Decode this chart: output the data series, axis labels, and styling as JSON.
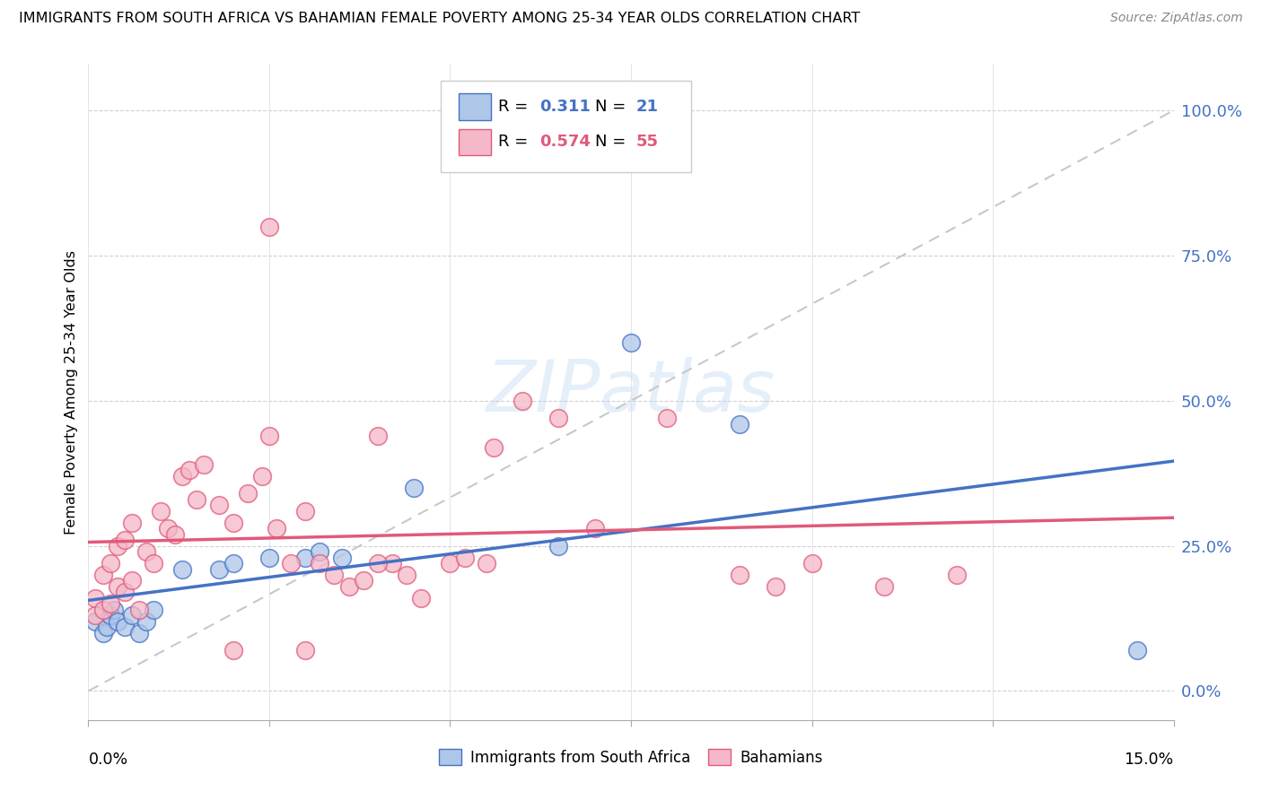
{
  "title": "IMMIGRANTS FROM SOUTH AFRICA VS BAHAMIAN FEMALE POVERTY AMONG 25-34 YEAR OLDS CORRELATION CHART",
  "source": "Source: ZipAtlas.com",
  "ylabel": "Female Poverty Among 25-34 Year Olds",
  "yaxis_labels": [
    "100.0%",
    "75.0%",
    "50.0%",
    "25.0%",
    "0.0%"
  ],
  "yaxis_values": [
    1.0,
    0.75,
    0.5,
    0.25,
    0.0
  ],
  "xlim": [
    0.0,
    0.15
  ],
  "ylim": [
    -0.05,
    1.08
  ],
  "color_blue": "#aec6e8",
  "color_pink": "#f4b8c8",
  "line_blue": "#4472c4",
  "line_pink": "#e05a7a",
  "trendline_dashed": "#c8c8c8",
  "blue_scatter_x": [
    0.001,
    0.002,
    0.0025,
    0.003,
    0.0035,
    0.004,
    0.005,
    0.006,
    0.007,
    0.008,
    0.009,
    0.013,
    0.018,
    0.02,
    0.025,
    0.03,
    0.032,
    0.035,
    0.045,
    0.065,
    0.075,
    0.09,
    0.145
  ],
  "blue_scatter_y": [
    0.12,
    0.1,
    0.11,
    0.13,
    0.14,
    0.12,
    0.11,
    0.13,
    0.1,
    0.12,
    0.14,
    0.21,
    0.21,
    0.22,
    0.23,
    0.23,
    0.24,
    0.23,
    0.35,
    0.25,
    0.6,
    0.46,
    0.07
  ],
  "pink_scatter_x": [
    0.001,
    0.001,
    0.002,
    0.002,
    0.003,
    0.003,
    0.004,
    0.004,
    0.005,
    0.005,
    0.006,
    0.006,
    0.007,
    0.008,
    0.009,
    0.01,
    0.011,
    0.012,
    0.013,
    0.014,
    0.015,
    0.016,
    0.018,
    0.02,
    0.022,
    0.024,
    0.025,
    0.026,
    0.028,
    0.03,
    0.032,
    0.034,
    0.036,
    0.038,
    0.04,
    0.042,
    0.044,
    0.046,
    0.05,
    0.052,
    0.056,
    0.06,
    0.065,
    0.07,
    0.08,
    0.09,
    0.095,
    0.1,
    0.11,
    0.12,
    0.025,
    0.04,
    0.055,
    0.03,
    0.02
  ],
  "pink_scatter_y": [
    0.13,
    0.16,
    0.14,
    0.2,
    0.15,
    0.22,
    0.18,
    0.25,
    0.17,
    0.26,
    0.19,
    0.29,
    0.14,
    0.24,
    0.22,
    0.31,
    0.28,
    0.27,
    0.37,
    0.38,
    0.33,
    0.39,
    0.32,
    0.29,
    0.34,
    0.37,
    0.8,
    0.28,
    0.22,
    0.31,
    0.22,
    0.2,
    0.18,
    0.19,
    0.44,
    0.22,
    0.2,
    0.16,
    0.22,
    0.23,
    0.42,
    0.5,
    0.47,
    0.28,
    0.47,
    0.2,
    0.18,
    0.22,
    0.18,
    0.2,
    0.44,
    0.22,
    0.22,
    0.07,
    0.07
  ]
}
